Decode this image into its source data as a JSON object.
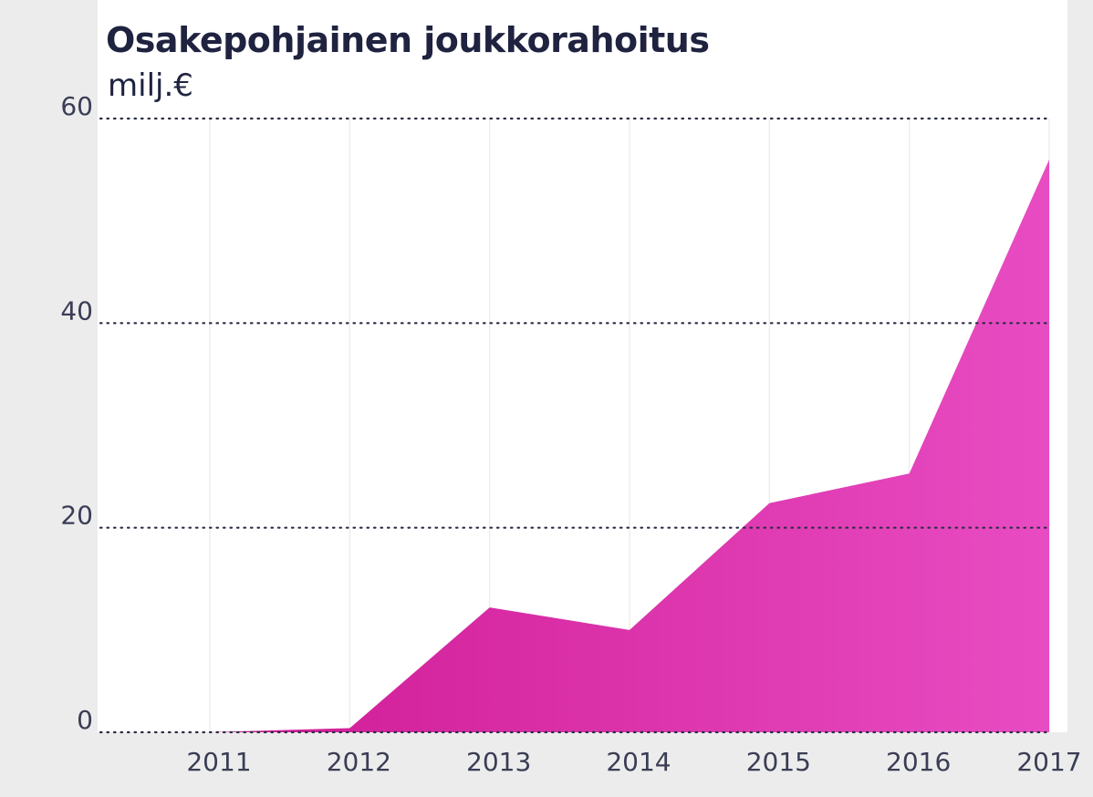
{
  "chart_data": {
    "type": "area",
    "title": "Osakepohjainen joukkorahoitus",
    "ylabel": "milj.€",
    "xlabel": "",
    "x": [
      2011,
      2012,
      2013,
      2014,
      2015,
      2016,
      2017
    ],
    "x_tick_labels": [
      "2011",
      "2012",
      "2013",
      "2014",
      "2015",
      "2016",
      "2017"
    ],
    "y_ticks": [
      0,
      20,
      40,
      60
    ],
    "y_tick_labels": [
      "0",
      "20",
      "40",
      "60"
    ],
    "ylim": [
      0,
      60
    ],
    "series": [
      {
        "values": [
          0,
          0.4,
          12.2,
          10,
          22.4,
          25.3,
          56
        ],
        "color": "#e040b8"
      }
    ],
    "grid": "horizontal-dotted",
    "legend": "none"
  },
  "colors": {
    "area_dark": "#cf1a94",
    "area_light": "#e84cc2",
    "text": "#1f2340",
    "panel": "#ececec"
  }
}
